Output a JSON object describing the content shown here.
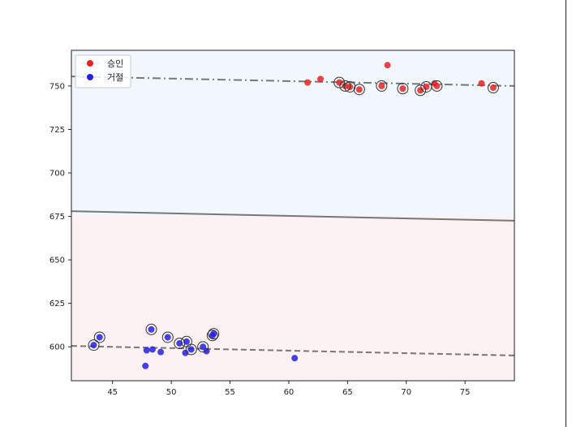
{
  "chart_data": {
    "type": "scatter",
    "title": "",
    "xlabel": "",
    "ylabel": "",
    "xlim": [
      41.5,
      79.2
    ],
    "ylim": [
      580.5,
      770.5
    ],
    "xticks": [
      45,
      50,
      55,
      60,
      65,
      70,
      75
    ],
    "yticks": [
      600,
      625,
      650,
      675,
      700,
      725,
      750
    ],
    "grid": false,
    "legend_position": "top-left",
    "colors": {
      "approved": "#e82222",
      "rejected": "#2222e0",
      "approved_region": "#f1f7fc",
      "rejected_region": "#fcf1f3",
      "boundary": "#777777"
    },
    "series": [
      {
        "name": "승인",
        "points": [
          [
            61.6,
            752
          ],
          [
            62.7,
            754
          ],
          [
            64.3,
            752
          ],
          [
            64.8,
            750
          ],
          [
            65.2,
            749.5
          ],
          [
            66.0,
            748
          ],
          [
            67.9,
            750
          ],
          [
            68.4,
            762
          ],
          [
            69.7,
            748.5
          ],
          [
            71.2,
            747.5
          ],
          [
            71.7,
            749.5
          ],
          [
            72.4,
            751.5
          ],
          [
            72.6,
            750
          ],
          [
            76.4,
            751.5
          ],
          [
            77.4,
            749
          ]
        ]
      },
      {
        "name": "거절",
        "points": [
          [
            43.4,
            601
          ],
          [
            43.9,
            605.5
          ],
          [
            47.8,
            589
          ],
          [
            47.9,
            598
          ],
          [
            48.3,
            610
          ],
          [
            48.4,
            598.5
          ],
          [
            49.1,
            597
          ],
          [
            49.7,
            605.5
          ],
          [
            50.7,
            602
          ],
          [
            51.2,
            596.5
          ],
          [
            51.3,
            603
          ],
          [
            51.7,
            598.5
          ],
          [
            52.7,
            600
          ],
          [
            53.0,
            597.5
          ],
          [
            53.5,
            606.5
          ],
          [
            53.6,
            607.5
          ],
          [
            60.5,
            593.5
          ]
        ]
      }
    ],
    "support_vectors": [
      [
        43.4,
        601
      ],
      [
        43.9,
        605.5
      ],
      [
        48.3,
        610
      ],
      [
        49.7,
        605.5
      ],
      [
        50.7,
        602
      ],
      [
        51.3,
        603
      ],
      [
        51.7,
        598.5
      ],
      [
        52.7,
        600
      ],
      [
        53.5,
        606.5
      ],
      [
        53.6,
        607.5
      ],
      [
        64.3,
        752
      ],
      [
        64.8,
        750
      ],
      [
        65.2,
        749.5
      ],
      [
        66.0,
        748
      ],
      [
        67.9,
        750
      ],
      [
        69.7,
        748.5
      ],
      [
        71.2,
        747.5
      ],
      [
        71.7,
        749.5
      ],
      [
        72.6,
        750
      ],
      [
        77.4,
        749
      ]
    ],
    "decision_boundary": [
      [
        41.5,
        678
      ],
      [
        79.2,
        672.5
      ]
    ],
    "upper_margin": [
      [
        41.5,
        755.5
      ],
      [
        79.2,
        750
      ]
    ],
    "lower_margin": [
      [
        41.5,
        600.5
      ],
      [
        79.2,
        595
      ]
    ]
  }
}
